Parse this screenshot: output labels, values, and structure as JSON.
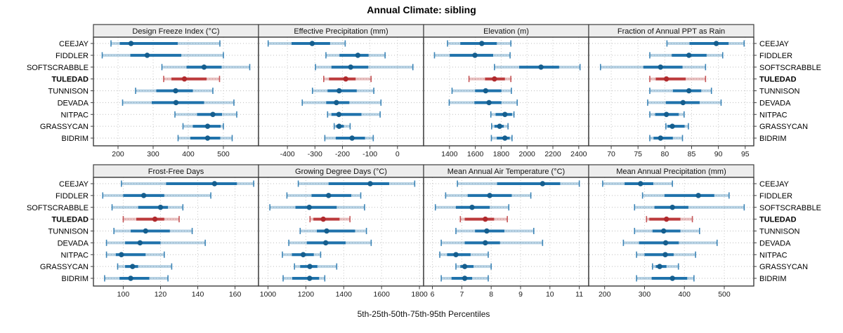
{
  "title": "Annual Climate: sibling",
  "footer": "5th-25th-50th-75th-95th Percentiles",
  "sites": [
    "CEEJAY",
    "FIDDLER",
    "SOFTSCRABBLE",
    "TULEDAD",
    "TUNNISON",
    "DEVADA",
    "NITPAC",
    "GRASSYCAN",
    "BIDRIM"
  ],
  "highlight_site": "TULEDAD",
  "colors": {
    "blue": "#1f72ab",
    "blue_dot": "#155e8e",
    "red": "#bc3a3c",
    "red_dot": "#b02a2d",
    "band_opacity": 0.32,
    "grid": "#c9c9c9",
    "row_line": "#bdbdbd",
    "border": "#3c3c3c",
    "strip_bg": "#ededed",
    "tick_text": "#1a1a1a"
  },
  "chart_data": {
    "type": "dotplot-percentiles",
    "title": "Annual Climate: sibling",
    "xlabel": "5th-25th-50th-75th-95th Percentiles",
    "percentile_labels": [
      "5th",
      "25th",
      "50th",
      "75th",
      "95th"
    ],
    "legend_position": "none",
    "grid": true,
    "panels": [
      {
        "title": "Design Freeze Index (°C)",
        "grid_row": 0,
        "grid_col": 0,
        "xlim": [
          130,
          600
        ],
        "ticks": [
          200,
          300,
          400,
          500
        ],
        "values": [
          [
            180,
            205,
            237,
            370,
            490
          ],
          [
            155,
            235,
            283,
            380,
            500
          ],
          [
            325,
            395,
            445,
            495,
            575
          ],
          [
            330,
            352,
            389,
            452,
            489
          ],
          [
            250,
            309,
            364,
            413,
            470
          ],
          [
            213,
            296,
            365,
            445,
            530
          ],
          [
            362,
            425,
            470,
            496,
            538
          ],
          [
            385,
            413,
            455,
            492,
            500
          ],
          [
            371,
            406,
            455,
            491,
            525
          ]
        ]
      },
      {
        "title": "Effective Precipitation (mm)",
        "grid_row": 0,
        "grid_col": 1,
        "xlim": [
          -505,
          95
        ],
        "ticks": [
          -400,
          -300,
          -200,
          -100,
          0
        ],
        "values": [
          [
            -470,
            -385,
            -310,
            -245,
            -190
          ],
          [
            -260,
            -211,
            -144,
            -105,
            -45
          ],
          [
            -298,
            -240,
            -170,
            -106,
            56
          ],
          [
            -268,
            -249,
            -188,
            -152,
            -96
          ],
          [
            -309,
            -254,
            -212,
            -148,
            -86
          ],
          [
            -346,
            -259,
            -222,
            -175,
            -60
          ],
          [
            -254,
            -240,
            -213,
            -131,
            -63
          ],
          [
            -230,
            -223,
            -212,
            -195,
            -172
          ],
          [
            -264,
            -224,
            -165,
            -118,
            -88
          ]
        ]
      },
      {
        "title": "Elevation (m)",
        "grid_row": 0,
        "grid_col": 2,
        "xlim": [
          1200,
          2477
        ],
        "ticks": [
          1400,
          1600,
          1800,
          2000,
          2200,
          2400
        ],
        "values": [
          [
            1385,
            1484,
            1650,
            1766,
            1875
          ],
          [
            1284,
            1402,
            1597,
            1738,
            1869
          ],
          [
            1748,
            1939,
            2108,
            2248,
            2410
          ],
          [
            1551,
            1675,
            1748,
            1829,
            1875
          ],
          [
            1420,
            1598,
            1680,
            1802,
            1879
          ],
          [
            1398,
            1593,
            1706,
            1802,
            1924
          ],
          [
            1720,
            1757,
            1829,
            1884,
            1899
          ],
          [
            1726,
            1748,
            1788,
            1820,
            1853
          ],
          [
            1724,
            1766,
            1829,
            1866,
            1884
          ]
        ]
      },
      {
        "title": "Fraction of Annual PPT as Rain",
        "grid_row": 0,
        "grid_col": 3,
        "xlim": [
          65.8,
          96.6
        ],
        "ticks": [
          70,
          75,
          80,
          85,
          90,
          95
        ],
        "values": [
          [
            80.4,
            84.6,
            89.6,
            91.9,
            94.8
          ],
          [
            77.2,
            81.3,
            84.5,
            87.8,
            90.8
          ],
          [
            68.0,
            76.0,
            79.2,
            83.3,
            87.6
          ],
          [
            77.2,
            78.3,
            80.3,
            83.9,
            87.6
          ],
          [
            77.2,
            81.5,
            84.5,
            86.8,
            88.7
          ],
          [
            76.8,
            80.2,
            83.4,
            86.5,
            90.5
          ],
          [
            77.2,
            78.2,
            80.3,
            82.6,
            83.6
          ],
          [
            80.2,
            80.5,
            81.4,
            83.7,
            84.4
          ],
          [
            77.2,
            77.9,
            79.2,
            81.5,
            83.3
          ]
        ]
      },
      {
        "title": "Frost-Free Days",
        "grid_row": 1,
        "grid_col": 0,
        "xlim": [
          84,
          172.6
        ],
        "ticks": [
          100,
          120,
          140,
          160
        ],
        "values": [
          [
            99,
            123,
            149,
            161,
            170
          ],
          [
            89,
            100,
            111,
            122,
            147
          ],
          [
            94,
            108,
            120,
            124,
            132
          ],
          [
            100,
            107,
            117,
            122,
            130
          ],
          [
            95,
            104,
            112,
            125,
            137
          ],
          [
            91,
            101,
            109,
            120,
            144
          ],
          [
            91,
            96,
            99,
            112,
            122
          ],
          [
            97,
            101,
            105,
            108,
            126
          ],
          [
            90,
            98,
            104,
            114,
            124
          ]
        ]
      },
      {
        "title": "Growing Degree Days (°C)",
        "grid_row": 1,
        "grid_col": 1,
        "xlim": [
          950,
          1822
        ],
        "ticks": [
          1000,
          1200,
          1400,
          1600,
          1800
        ],
        "values": [
          [
            1160,
            1320,
            1540,
            1640,
            1775
          ],
          [
            1100,
            1230,
            1320,
            1440,
            1490
          ],
          [
            1010,
            1145,
            1218,
            1363,
            1510
          ],
          [
            1222,
            1240,
            1292,
            1378,
            1433
          ],
          [
            1170,
            1258,
            1310,
            1460,
            1520
          ],
          [
            1110,
            1205,
            1305,
            1410,
            1545
          ],
          [
            1076,
            1126,
            1186,
            1242,
            1278
          ],
          [
            1140,
            1170,
            1221,
            1261,
            1363
          ],
          [
            1080,
            1128,
            1220,
            1270,
            1300
          ]
        ]
      },
      {
        "title": "Mean Annual Air Temperature (°C)",
        "grid_row": 1,
        "grid_col": 2,
        "xlim": [
          5.7,
          11.32
        ],
        "ticks": [
          6,
          7,
          8,
          9,
          10,
          11
        ],
        "values": [
          [
            6.85,
            8.2,
            9.75,
            10.35,
            11.0
          ],
          [
            6.45,
            7.2,
            7.95,
            8.7,
            9.35
          ],
          [
            6.1,
            6.8,
            7.35,
            7.95,
            8.6
          ],
          [
            6.95,
            7.1,
            7.8,
            8.1,
            8.55
          ],
          [
            6.8,
            7.45,
            7.85,
            8.45,
            9.45
          ],
          [
            6.3,
            7.1,
            7.8,
            8.3,
            9.75
          ],
          [
            6.25,
            6.5,
            6.8,
            7.3,
            7.9
          ],
          [
            6.8,
            6.95,
            7.1,
            7.4,
            8.0
          ],
          [
            6.3,
            6.65,
            7.1,
            7.35,
            7.9
          ]
        ]
      },
      {
        "title": "Mean Annual Precipitation (mm)",
        "grid_row": 1,
        "grid_col": 3,
        "xlim": [
          160,
          574
        ],
        "ticks": [
          200,
          300,
          400,
          500
        ],
        "values": [
          [
            195,
            250,
            290,
            322,
            370
          ],
          [
            295,
            350,
            435,
            475,
            512
          ],
          [
            275,
            325,
            370,
            410,
            550
          ],
          [
            305,
            312,
            355,
            390,
            420
          ],
          [
            275,
            320,
            348,
            390,
            438
          ],
          [
            247,
            286,
            353,
            386,
            482
          ],
          [
            280,
            300,
            352,
            373,
            428
          ],
          [
            320,
            328,
            338,
            355,
            385
          ],
          [
            280,
            318,
            370,
            407,
            424
          ]
        ]
      }
    ]
  }
}
